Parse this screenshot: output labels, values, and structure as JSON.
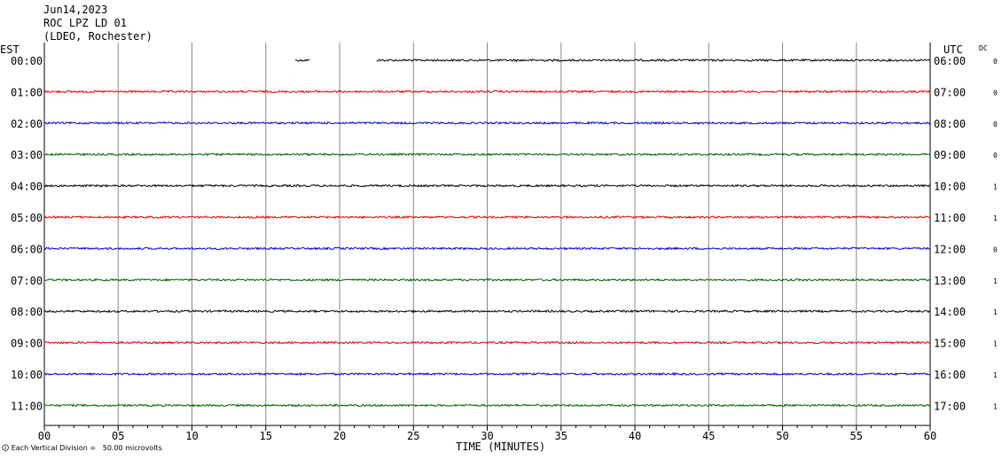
{
  "header": {
    "date": "Jun14,2023",
    "station": "ROC LPZ LD 01",
    "location": "(LDEO, Rochester)"
  },
  "chart_data": {
    "type": "line",
    "left_axis_title": "EST",
    "right_axis_title": "UTC",
    "dc_title": "DC",
    "xlabel": "TIME (MINUTES)",
    "xlim": [
      0,
      60
    ],
    "x_ticks": [
      "00",
      "05",
      "10",
      "15",
      "20",
      "25",
      "30",
      "35",
      "40",
      "45",
      "50",
      "55",
      "60"
    ],
    "footer_note": "Each Vertical Division =   50.00 microvolts",
    "colors": [
      "#000000",
      "#e00000",
      "#0000d0",
      "#006000"
    ],
    "rows": [
      {
        "est": "00:00",
        "utc": "06:00",
        "dc": "0",
        "color": "#000000",
        "segments": [
          [
            17.0,
            18.0
          ],
          [
            22.5,
            60
          ]
        ]
      },
      {
        "est": "01:00",
        "utc": "07:00",
        "dc": "0",
        "color": "#e00000",
        "segments": [
          [
            0,
            60
          ]
        ]
      },
      {
        "est": "02:00",
        "utc": "08:00",
        "dc": "0",
        "color": "#0000d0",
        "segments": [
          [
            0,
            60
          ]
        ]
      },
      {
        "est": "03:00",
        "utc": "09:00",
        "dc": "0",
        "color": "#006000",
        "segments": [
          [
            0,
            60
          ]
        ]
      },
      {
        "est": "04:00",
        "utc": "10:00",
        "dc": "1",
        "color": "#000000",
        "segments": [
          [
            0,
            60
          ]
        ]
      },
      {
        "est": "05:00",
        "utc": "11:00",
        "dc": "1",
        "color": "#e00000",
        "segments": [
          [
            0,
            60
          ]
        ]
      },
      {
        "est": "06:00",
        "utc": "12:00",
        "dc": "0",
        "color": "#0000d0",
        "segments": [
          [
            0,
            60
          ]
        ]
      },
      {
        "est": "07:00",
        "utc": "13:00",
        "dc": "1",
        "color": "#006000",
        "segments": [
          [
            0,
            60
          ]
        ]
      },
      {
        "est": "08:00",
        "utc": "14:00",
        "dc": "1",
        "color": "#000000",
        "segments": [
          [
            0,
            60
          ]
        ]
      },
      {
        "est": "09:00",
        "utc": "15:00",
        "dc": "1",
        "color": "#e00000",
        "segments": [
          [
            0,
            60
          ]
        ]
      },
      {
        "est": "10:00",
        "utc": "16:00",
        "dc": "1",
        "color": "#0000d0",
        "segments": [
          [
            0,
            60
          ]
        ]
      },
      {
        "est": "11:00",
        "utc": "17:00",
        "dc": "1",
        "color": "#006000",
        "segments": [
          [
            0,
            60
          ]
        ]
      }
    ]
  }
}
